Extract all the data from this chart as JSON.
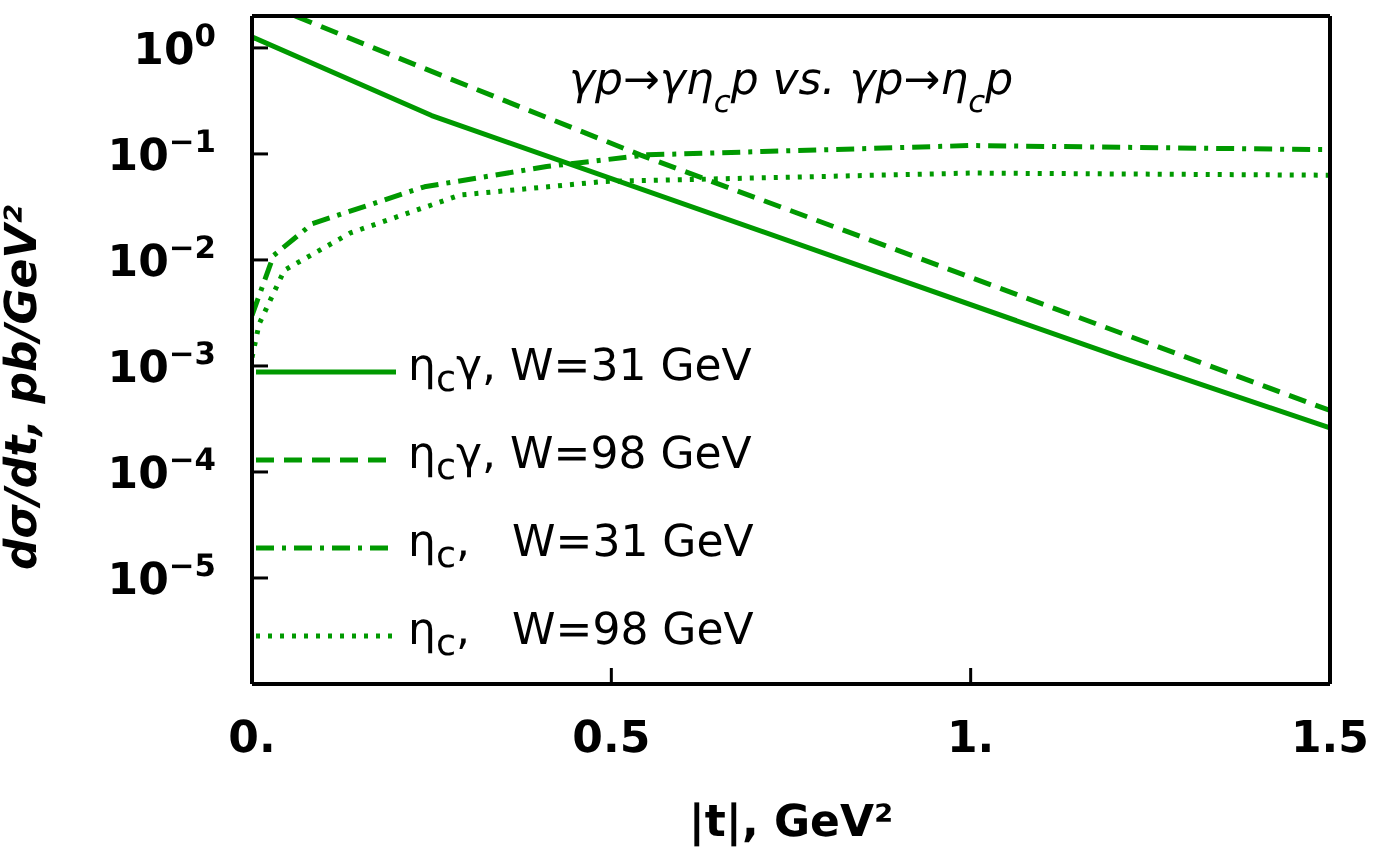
{
  "chart_data": {
    "type": "line",
    "title": "γp→γη$_{c}$p vs. γp→η$_{c}$p",
    "xlabel": "|t|, GeV²",
    "ylabel": "dσ/dt, pb/GeV²",
    "log": "y",
    "xlim": [
      0,
      1.5
    ],
    "ylim": [
      1e-06,
      2
    ],
    "xticks": [
      {
        "value": 0,
        "label": "0."
      },
      {
        "value": 0.5,
        "label": "0.5"
      },
      {
        "value": 1,
        "label": "1."
      },
      {
        "value": 1.5,
        "label": "1.5"
      }
    ],
    "yticks": [
      {
        "value": 1,
        "label": "10$^{0}$"
      },
      {
        "value": 0.1,
        "label": "10$^{−1}$"
      },
      {
        "value": 0.01,
        "label": "10$^{−2}$"
      },
      {
        "value": 0.001,
        "label": "10$^{−3}$"
      },
      {
        "value": 0.0001,
        "label": "10$^{−4}$"
      },
      {
        "value": 1e-05,
        "label": "10$^{−5}$"
      }
    ],
    "legend": "bottom left",
    "grid": false,
    "marker": "none",
    "series": [
      {
        "name": "η$_{c}$γ, W=31 GeV",
        "color": "#009900",
        "line_style": "solid",
        "x": [
          0,
          0.25,
          1.21,
          1.5
        ],
        "values": [
          1.27,
          0.23,
          0.0012,
          0.00026
        ]
      },
      {
        "name": "η$_{c}$γ, W=98 GeV",
        "color": "#009900",
        "line_style": "dashed",
        "x": [
          0.06,
          0.25,
          0.54,
          1.5
        ],
        "values": [
          2,
          0.6,
          0.098,
          0.00038
        ]
      },
      {
        "name": "η$_{c}$,   W=31 GeV",
        "color": "#009900",
        "line_style": "dashdot",
        "x": [
          0,
          0.03,
          0.084,
          0.24,
          0.41,
          0.55,
          1,
          1.48,
          1.5
        ],
        "values": [
          0.003,
          0.011,
          0.022,
          0.049,
          0.076,
          0.098,
          0.12,
          0.11,
          0.11
        ]
      },
      {
        "name": "η$_{c}$,   W=98 GeV",
        "color": "#009900",
        "line_style": "dotted",
        "x": [
          0,
          0.01,
          0.045,
          0.137,
          0.29,
          0.49,
          1,
          1.5
        ],
        "values": [
          0.0012,
          0.0025,
          0.008,
          0.018,
          0.041,
          0.055,
          0.066,
          0.063
        ]
      }
    ]
  }
}
